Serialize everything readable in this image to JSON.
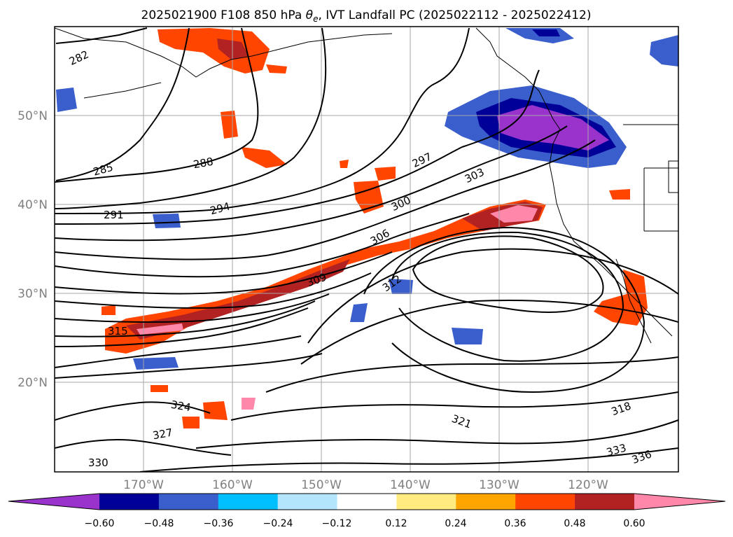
{
  "title_prefix": "2025021900 F108 850 hPa ",
  "title_symbol": "θ",
  "title_subscript": "e",
  "title_suffix": ", IVT Landfall PC (2025022112 - 2025022412)",
  "map": {
    "lat_labels": [
      "50°N",
      "40°N",
      "30°N",
      "20°N"
    ],
    "lon_labels": [
      "170°W",
      "160°W",
      "150°W",
      "140°W",
      "130°W",
      "120°W"
    ],
    "contour_labels": [
      "282",
      "285",
      "288",
      "291",
      "294",
      "297",
      "300",
      "303",
      "306",
      "309",
      "312",
      "315",
      "318",
      "321",
      "324",
      "327",
      "330",
      "333",
      "336"
    ]
  },
  "colorbar": {
    "colors": [
      "#9933cc",
      "#000099",
      "#3a5fcd",
      "#00bfff",
      "#b3e5fc",
      "#ffffff",
      "#ffeb80",
      "#ffa500",
      "#ff4500",
      "#b22222",
      "#ff88aa"
    ],
    "tick_labels": [
      "−0.60",
      "−0.48",
      "−0.36",
      "−0.24",
      "−0.12",
      "0.12",
      "0.24",
      "0.36",
      "0.48",
      "0.60"
    ]
  }
}
